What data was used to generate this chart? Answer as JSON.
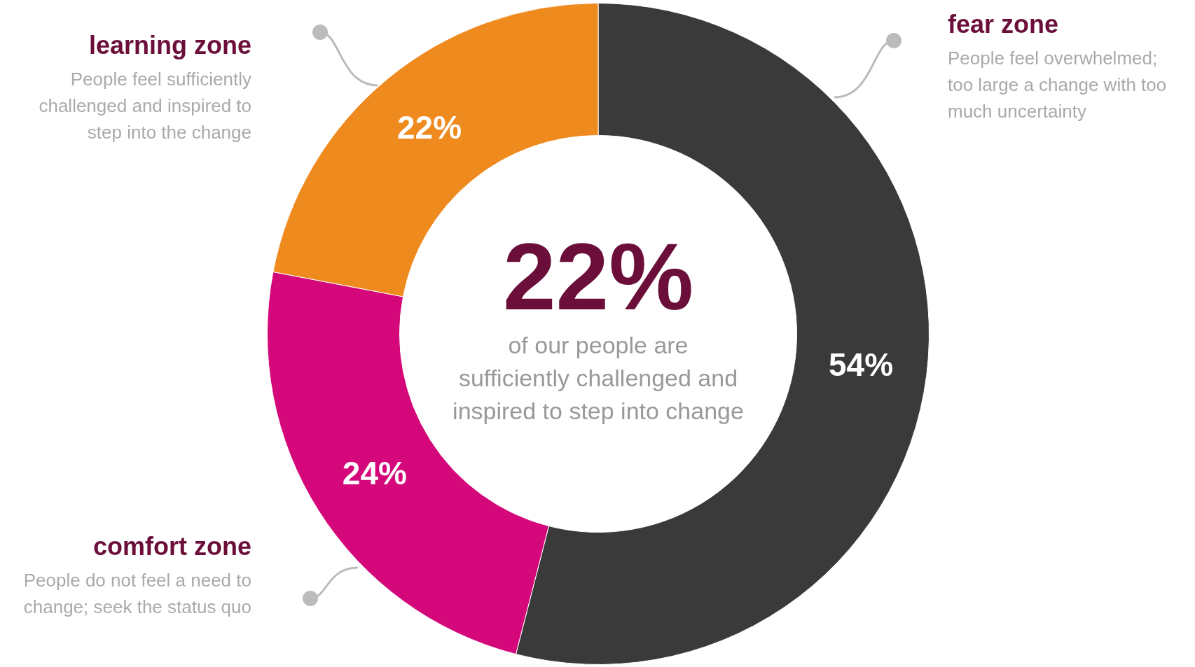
{
  "chart_data": {
    "type": "donut",
    "categories": [
      "fear zone",
      "comfort zone",
      "learning zone"
    ],
    "values": [
      54,
      24,
      22
    ],
    "colors": [
      "#3a3a3a",
      "#d4087a",
      "#ef8a1e"
    ],
    "value_labels": [
      "54%",
      "24%",
      "22%"
    ],
    "annotations": [
      "22%",
      "of our people are sufficiently challenged and inspired to step into change",
      "People feel overwhelmed; too large a change with too much uncertainty",
      "People do not feel a need to change; seek the status quo",
      "People feel sufficiently challenged and inspired to step into the change"
    ]
  }
}
